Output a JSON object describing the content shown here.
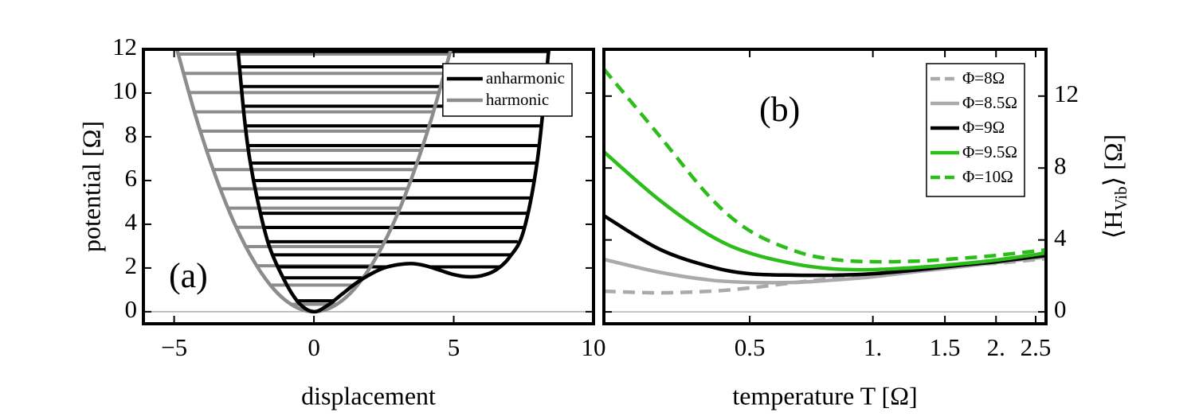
{
  "chart_data": [
    {
      "type": "line",
      "label": "(a)",
      "xlabel": "displacement",
      "ylabel": "potential [Ω]",
      "xlim": [
        -6.1,
        10
      ],
      "ylim": [
        -0.55,
        12
      ],
      "xticks": [
        {
          "value": -5,
          "label": "−5"
        },
        0,
        5,
        10
      ],
      "yticks": [
        0,
        2,
        4,
        6,
        8,
        10,
        12
      ],
      "y_axis_position": "left",
      "zero_line": true,
      "legend": "upper right",
      "series": [
        {
          "name": "harmonic",
          "color": "#8c8c8c",
          "dashed": false,
          "x": [
            -4.9,
            -4.2,
            -3.5,
            -2.8,
            -2.1,
            -1.4,
            -0.7,
            0,
            0.7,
            1.4,
            2.1,
            2.8,
            3.5,
            4.2,
            4.9
          ],
          "values": [
            12.0,
            8.82,
            6.13,
            3.92,
            2.21,
            0.98,
            0.25,
            0,
            0.25,
            0.98,
            2.21,
            3.92,
            6.13,
            8.82,
            12.0
          ],
          "levels": [
            0.34,
            1.22,
            2.1,
            2.98,
            3.86,
            4.74,
            5.62,
            6.5,
            7.38,
            8.26,
            9.14,
            10.02,
            10.9,
            11.78
          ]
        },
        {
          "name": "anharmonic",
          "color": "#000000",
          "dashed": false,
          "x": [
            -2.72,
            -2.5,
            -2.3,
            -2.0,
            -1.6,
            -1.0,
            -0.5,
            0,
            0.5,
            1,
            1.5,
            2,
            2.5,
            3,
            3.5,
            4,
            4.5,
            5,
            5.5,
            6,
            6.5,
            7,
            7.5,
            8,
            8.4
          ],
          "values": [
            12,
            9,
            7,
            5,
            3,
            1.3,
            0.35,
            0,
            0.3,
            0.8,
            1.3,
            1.7,
            2.0,
            2.15,
            2.2,
            2.1,
            1.9,
            1.7,
            1.6,
            1.65,
            1.9,
            2.5,
            3.7,
            7,
            12
          ],
          "levels": [
            0.5,
            1.55,
            2.05,
            2.6,
            3.2,
            3.85,
            4.5,
            5.2,
            6.0,
            6.8,
            7.6,
            8.5,
            9.4,
            10.3,
            11.2,
            11.9
          ]
        }
      ]
    },
    {
      "type": "line",
      "label": "(b)",
      "xlabel": "temperature T [Ω]",
      "ylabel": [
        "⟨H",
        "Vib",
        "⟩ [Ω]"
      ],
      "xscale": "log",
      "xlim": [
        0.22,
        2.65
      ],
      "ylim": [
        -0.66,
        14.6
      ],
      "xticks": [
        0.5,
        {
          "value": 1,
          "label": "1."
        },
        1.5,
        {
          "value": 2,
          "label": "2."
        },
        2.5
      ],
      "yticks": [
        0,
        4,
        8,
        12
      ],
      "y_axis_position": "right",
      "zero_line": true,
      "legend": "upper right",
      "x": [
        0.22,
        0.3,
        0.4,
        0.5,
        0.65,
        0.8,
        1.0,
        1.3,
        1.6,
        2.0,
        2.65
      ],
      "series": [
        {
          "name": "Φ=8Ω",
          "color": "#aaaaaa",
          "dashed": true,
          "values": [
            1.15,
            1.06,
            1.15,
            1.33,
            1.64,
            1.86,
            2.08,
            2.39,
            2.61,
            2.7,
            2.96
          ]
        },
        {
          "name": "Φ=8.5Ω",
          "color": "#aaaaaa",
          "dashed": false,
          "values": [
            2.92,
            2.21,
            1.77,
            1.64,
            1.64,
            1.77,
            1.95,
            2.26,
            2.48,
            2.74,
            3.05
          ]
        },
        {
          "name": "Φ=9Ω",
          "color": "#000000",
          "dashed": false,
          "values": [
            5.35,
            3.5,
            2.52,
            2.12,
            2.04,
            2.04,
            2.12,
            2.35,
            2.57,
            2.79,
            3.14
          ]
        },
        {
          "name": "Φ=9.5Ω",
          "color": "#2dbd1a",
          "dashed": false,
          "values": [
            8.9,
            6.24,
            4.25,
            3.27,
            2.65,
            2.39,
            2.35,
            2.48,
            2.65,
            2.88,
            3.27
          ]
        },
        {
          "name": "Φ=10Ω",
          "color": "#2dbd1a",
          "dashed": true,
          "values": [
            13.5,
            9.82,
            6.37,
            4.51,
            3.36,
            2.92,
            2.79,
            2.83,
            2.96,
            3.14,
            3.45
          ]
        }
      ]
    }
  ]
}
